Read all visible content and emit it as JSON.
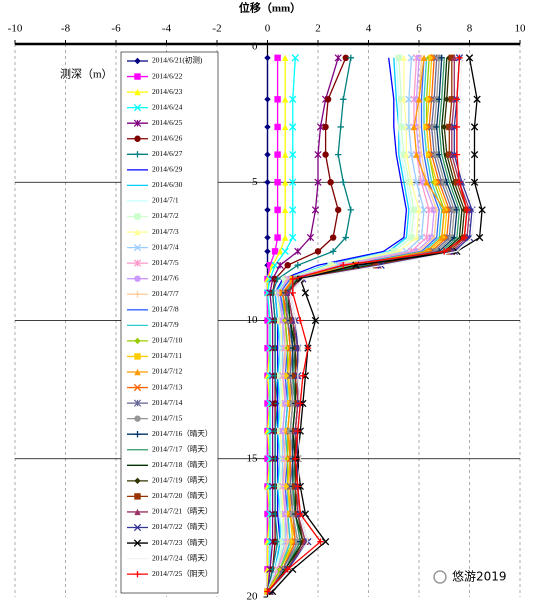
{
  "chart_data": {
    "type": "line",
    "x_label": "位移（mm）",
    "y_label": "测深（m）",
    "watermark": "悠游2019",
    "xlim": [
      -10,
      10
    ],
    "xticks": [
      -10,
      -8,
      -6,
      -4,
      -2,
      0,
      2,
      4,
      6,
      8,
      10
    ],
    "ylim": [
      0,
      20
    ],
    "yticks": [
      0,
      5,
      10,
      15,
      20
    ],
    "y_inverted": true,
    "grid": true,
    "depth": [
      0.5,
      2,
      3,
      4,
      5,
      6,
      7,
      7.5,
      8,
      8.5,
      9,
      10,
      11,
      12,
      13,
      14,
      15,
      16,
      17,
      18,
      19,
      19.8
    ],
    "series": [
      {
        "name": "2014/6/21(初测)",
        "color": "#000080",
        "marker": "diamond",
        "values": [
          0,
          0,
          0,
          0,
          0,
          0,
          0,
          0,
          0,
          0,
          0,
          0,
          0,
          0,
          0,
          0,
          0,
          0,
          0,
          0,
          0,
          0
        ]
      },
      {
        "name": "2014/6/22",
        "color": "#ff00ff",
        "marker": "square",
        "values": [
          0.4,
          0.4,
          0.4,
          0.4,
          0.4,
          0.4,
          0.4,
          0.3,
          0.1,
          0,
          0,
          0,
          0,
          0,
          0,
          0,
          0,
          0,
          0,
          0,
          0,
          0
        ]
      },
      {
        "name": "2014/6/23",
        "color": "#ffff00",
        "marker": "triangle",
        "values": [
          0.7,
          0.7,
          0.7,
          0.7,
          0.7,
          0.7,
          0.7,
          0.5,
          0.2,
          0,
          0,
          0.1,
          0.1,
          0,
          0.1,
          0,
          0.1,
          0,
          0.1,
          0,
          0,
          0
        ]
      },
      {
        "name": "2014/6/24",
        "color": "#00ffff",
        "marker": "x",
        "values": [
          1.1,
          1.0,
          1.0,
          1.0,
          1.0,
          1.0,
          1.0,
          0.7,
          0.3,
          0.1,
          0,
          0.1,
          0.1,
          0.1,
          0.1,
          0.1,
          0.1,
          0.1,
          0.1,
          0.1,
          0.1,
          0
        ]
      },
      {
        "name": "2014/6/25",
        "color": "#800080",
        "marker": "star",
        "values": [
          2.8,
          2.3,
          2.1,
          2.0,
          2.0,
          1.9,
          1.7,
          1.2,
          0.5,
          0.2,
          0.1,
          0.2,
          0.2,
          0.2,
          0.2,
          0.2,
          0.2,
          0.2,
          0.2,
          0.2,
          0.1,
          0
        ]
      },
      {
        "name": "2014/6/26",
        "color": "#800000",
        "marker": "circle",
        "values": [
          3.1,
          2.4,
          2.3,
          2.3,
          2.5,
          2.8,
          2.6,
          2.0,
          0.8,
          0.3,
          0.2,
          0.3,
          0.3,
          0.3,
          0.3,
          0.3,
          0.3,
          0.3,
          0.3,
          0.3,
          0.2,
          0
        ]
      },
      {
        "name": "2014/6/27",
        "color": "#008080",
        "marker": "plus",
        "values": [
          3.3,
          3.0,
          2.9,
          2.8,
          3.0,
          3.3,
          3.1,
          2.6,
          1.2,
          0.4,
          0.2,
          0.3,
          0.3,
          0.3,
          0.4,
          0.3,
          0.3,
          0.3,
          0.3,
          0.4,
          0.2,
          0
        ]
      },
      {
        "name": "2014/6/29",
        "color": "#0000ff",
        "marker": "none",
        "values": [
          4.8,
          5.0,
          5.0,
          5.1,
          5.3,
          5.5,
          5.4,
          4.6,
          2.0,
          0.6,
          0.3,
          0.4,
          0.4,
          0.4,
          0.4,
          0.4,
          0.4,
          0.4,
          0.4,
          0.5,
          0.3,
          0
        ]
      },
      {
        "name": "2014/6/30",
        "color": "#00ccff",
        "marker": "none",
        "values": [
          5.0,
          5.1,
          5.2,
          5.2,
          5.4,
          5.6,
          5.5,
          4.8,
          2.3,
          0.7,
          0.3,
          0.4,
          0.5,
          0.4,
          0.5,
          0.4,
          0.5,
          0.4,
          0.5,
          0.5,
          0.3,
          0
        ]
      },
      {
        "name": "2014/7/1",
        "color": "#ccffff",
        "marker": "none",
        "values": [
          5.1,
          5.2,
          5.2,
          5.3,
          5.5,
          5.7,
          5.6,
          4.9,
          2.4,
          0.7,
          0.4,
          0.5,
          0.5,
          0.5,
          0.5,
          0.5,
          0.5,
          0.5,
          0.5,
          0.6,
          0.3,
          0
        ]
      },
      {
        "name": "2014/7/2",
        "color": "#ccffcc",
        "marker": "square",
        "values": [
          5.2,
          5.3,
          5.3,
          5.4,
          5.6,
          5.8,
          5.7,
          5.0,
          2.5,
          0.7,
          0.4,
          0.5,
          0.6,
          0.5,
          0.6,
          0.5,
          0.6,
          0.5,
          0.6,
          0.6,
          0.4,
          0
        ]
      },
      {
        "name": "2014/7/3",
        "color": "#ffff99",
        "marker": "triangle",
        "values": [
          5.4,
          5.4,
          5.5,
          5.5,
          5.7,
          6.0,
          5.9,
          5.2,
          2.6,
          0.8,
          0.4,
          0.5,
          0.6,
          0.6,
          0.6,
          0.5,
          0.6,
          0.6,
          0.6,
          0.7,
          0.4,
          0
        ]
      },
      {
        "name": "2014/7/4",
        "color": "#99ccff",
        "marker": "x",
        "values": [
          5.7,
          5.6,
          5.6,
          5.7,
          5.9,
          6.2,
          6.1,
          5.5,
          2.8,
          0.8,
          0.4,
          0.6,
          0.6,
          0.6,
          0.7,
          0.6,
          0.6,
          0.6,
          0.7,
          0.7,
          0.4,
          0
        ]
      },
      {
        "name": "2014/7/5",
        "color": "#ff99cc",
        "marker": "star",
        "values": [
          5.9,
          5.8,
          5.8,
          5.9,
          6.1,
          6.4,
          6.3,
          5.7,
          2.9,
          0.8,
          0.5,
          0.6,
          0.7,
          0.6,
          0.7,
          0.6,
          0.7,
          0.6,
          0.7,
          0.8,
          0.4,
          0
        ]
      },
      {
        "name": "2014/7/6",
        "color": "#cc99ff",
        "marker": "circle",
        "values": [
          6.0,
          5.9,
          5.9,
          6.0,
          6.2,
          6.6,
          6.5,
          5.9,
          3.0,
          0.9,
          0.5,
          0.6,
          0.7,
          0.7,
          0.7,
          0.6,
          0.7,
          0.7,
          0.7,
          0.8,
          0.5,
          0
        ]
      },
      {
        "name": "2014/7/7",
        "color": "#ffcc99",
        "marker": "plus",
        "values": [
          6.1,
          6.0,
          6.0,
          6.1,
          6.3,
          6.7,
          6.6,
          6.0,
          3.1,
          0.9,
          0.5,
          0.7,
          0.7,
          0.7,
          0.8,
          0.7,
          0.7,
          0.7,
          0.8,
          0.8,
          0.5,
          0
        ]
      },
      {
        "name": "2014/7/8",
        "color": "#3366ff",
        "marker": "none",
        "values": [
          6.2,
          6.1,
          6.1,
          6.2,
          6.4,
          6.8,
          6.7,
          6.1,
          3.2,
          0.9,
          0.5,
          0.7,
          0.8,
          0.7,
          0.8,
          0.7,
          0.8,
          0.7,
          0.8,
          0.9,
          0.5,
          0
        ]
      },
      {
        "name": "2014/7/9",
        "color": "#33cccc",
        "marker": "none",
        "values": [
          6.3,
          6.2,
          6.2,
          6.3,
          6.5,
          6.9,
          6.8,
          6.2,
          3.3,
          1.0,
          0.6,
          0.7,
          0.8,
          0.8,
          0.8,
          0.7,
          0.8,
          0.8,
          0.8,
          0.9,
          0.5,
          0
        ]
      },
      {
        "name": "2014/7/10",
        "color": "#99cc00",
        "marker": "diamond",
        "values": [
          6.4,
          6.3,
          6.3,
          6.4,
          6.6,
          7.0,
          6.9,
          6.3,
          3.4,
          1.0,
          0.6,
          0.7,
          0.8,
          0.8,
          0.9,
          0.8,
          0.8,
          0.8,
          0.9,
          1.0,
          0.5,
          0
        ]
      },
      {
        "name": "2014/7/11",
        "color": "#ffcc00",
        "marker": "square",
        "values": [
          6.5,
          6.4,
          6.3,
          6.4,
          6.7,
          7.1,
          7.0,
          6.4,
          3.5,
          1.0,
          0.6,
          0.8,
          0.9,
          0.8,
          0.9,
          0.8,
          0.9,
          0.8,
          0.9,
          1.0,
          0.6,
          0
        ]
      },
      {
        "name": "2014/7/12",
        "color": "#ff9900",
        "marker": "triangle",
        "values": [
          6.2,
          6.0,
          5.8,
          5.9,
          6.3,
          7.0,
          6.9,
          6.3,
          3.5,
          1.0,
          0.6,
          0.8,
          0.9,
          0.9,
          0.9,
          0.8,
          0.9,
          0.9,
          0.9,
          1.1,
          0.6,
          0.1
        ]
      },
      {
        "name": "2014/7/13",
        "color": "#ff6600",
        "marker": "x",
        "values": [
          6.6,
          6.5,
          6.4,
          6.5,
          6.8,
          7.2,
          7.1,
          6.5,
          3.6,
          1.1,
          0.6,
          0.8,
          0.9,
          0.9,
          1.0,
          0.9,
          0.9,
          0.9,
          1.0,
          1.1,
          0.6,
          0.1
        ]
      },
      {
        "name": "2014/7/14",
        "color": "#666699",
        "marker": "star",
        "values": [
          6.7,
          6.6,
          6.5,
          6.6,
          6.9,
          7.3,
          7.2,
          6.6,
          3.7,
          1.1,
          0.7,
          0.8,
          1.0,
          0.9,
          1.0,
          0.9,
          1.0,
          0.9,
          1.0,
          1.2,
          0.6,
          0.1
        ]
      },
      {
        "name": "2014/7/15",
        "color": "#969696",
        "marker": "circle",
        "values": [
          6.8,
          6.7,
          6.6,
          6.7,
          7.0,
          7.4,
          7.3,
          6.7,
          3.8,
          1.1,
          0.7,
          0.9,
          1.0,
          1.0,
          1.0,
          0.9,
          1.0,
          1.0,
          1.0,
          1.2,
          0.7,
          0.1
        ]
      },
      {
        "name": "2014/7/16（晴天）",
        "color": "#003366",
        "marker": "plus",
        "values": [
          6.9,
          6.8,
          6.7,
          6.8,
          7.1,
          7.5,
          7.4,
          6.8,
          3.9,
          1.2,
          0.7,
          0.9,
          1.0,
          1.0,
          1.1,
          1.0,
          1.0,
          1.0,
          1.1,
          1.3,
          0.7,
          0.1
        ]
      },
      {
        "name": "2014/7/17（晴天）",
        "color": "#339966",
        "marker": "none",
        "values": [
          7.0,
          6.9,
          6.8,
          6.9,
          7.2,
          7.6,
          7.5,
          6.9,
          4.0,
          1.2,
          0.7,
          0.9,
          1.1,
          1.0,
          1.1,
          1.0,
          1.1,
          1.0,
          1.1,
          1.3,
          0.7,
          0.1
        ]
      },
      {
        "name": "2014/7/18（晴天）",
        "color": "#003300",
        "marker": "none",
        "values": [
          7.1,
          7.0,
          6.9,
          7.0,
          7.3,
          7.7,
          7.6,
          7.0,
          4.1,
          1.2,
          0.8,
          0.9,
          1.1,
          1.1,
          1.1,
          1.0,
          1.1,
          1.1,
          1.1,
          1.4,
          0.7,
          0.1
        ]
      },
      {
        "name": "2014/7/19（晴天）",
        "color": "#333300",
        "marker": "diamond",
        "values": [
          7.2,
          7.1,
          7.0,
          7.1,
          7.4,
          7.8,
          7.7,
          7.1,
          4.2,
          1.3,
          0.8,
          1.0,
          1.1,
          1.1,
          1.2,
          1.1,
          1.1,
          1.1,
          1.2,
          1.4,
          0.8,
          0.1
        ]
      },
      {
        "name": "2014/7/20（晴天）",
        "color": "#993300",
        "marker": "square",
        "values": [
          7.3,
          7.3,
          7.2,
          7.2,
          7.5,
          7.9,
          7.8,
          7.2,
          4.3,
          1.3,
          0.8,
          1.0,
          1.2,
          1.1,
          1.2,
          1.1,
          1.2,
          1.1,
          1.2,
          1.5,
          0.8,
          0.1
        ]
      },
      {
        "name": "2014/7/21（晴天）",
        "color": "#993366",
        "marker": "triangle",
        "values": [
          7.4,
          7.4,
          7.3,
          7.3,
          7.6,
          8.0,
          7.9,
          7.3,
          4.4,
          1.3,
          0.8,
          1.0,
          1.2,
          1.2,
          1.2,
          1.1,
          1.2,
          1.2,
          1.2,
          1.5,
          0.8,
          0.1
        ]
      },
      {
        "name": "2014/7/22（晴天）",
        "color": "#333399",
        "marker": "x",
        "values": [
          7.6,
          7.5,
          7.4,
          7.4,
          7.7,
          8.1,
          8.0,
          7.4,
          4.5,
          1.4,
          0.9,
          1.1,
          1.2,
          1.2,
          1.3,
          1.2,
          1.2,
          1.2,
          1.3,
          1.6,
          0.8,
          0.1
        ]
      },
      {
        "name": "2014/7/23（晴天）",
        "color": "#000000",
        "marker": "x",
        "values": [
          8.0,
          8.3,
          8.2,
          8.2,
          8.2,
          8.5,
          8.4,
          7.5,
          3.5,
          1.3,
          1.5,
          1.9,
          1.6,
          1.5,
          1.4,
          1.3,
          1.2,
          1.3,
          1.5,
          2.3,
          1.0,
          0.2
        ]
      },
      {
        "name": "2014/7/24（晴天）",
        "color": "#ffffff",
        "marker": "none",
        "values": [
          7.7,
          7.6,
          7.5,
          7.5,
          7.8,
          8.2,
          8.1,
          7.5,
          4.6,
          1.4,
          0.9,
          1.1,
          1.3,
          1.2,
          1.3,
          1.2,
          1.3,
          1.2,
          1.3,
          1.6,
          0.9,
          0.1
        ]
      },
      {
        "name": "2014/7/25（阴天）",
        "color": "#ff0000",
        "marker": "plus",
        "values": [
          7.6,
          7.5,
          7.5,
          7.5,
          7.6,
          7.9,
          7.8,
          7.0,
          3.0,
          1.0,
          1.0,
          1.3,
          1.6,
          1.4,
          1.3,
          1.2,
          1.1,
          1.2,
          1.3,
          2.1,
          0.8,
          0
        ]
      }
    ]
  }
}
